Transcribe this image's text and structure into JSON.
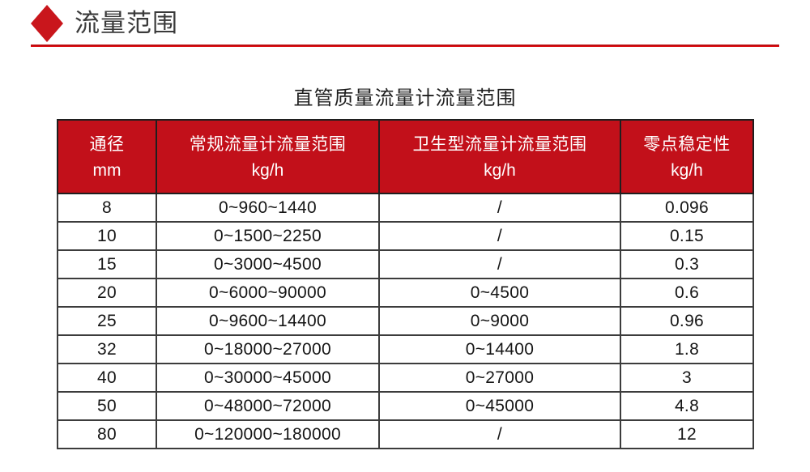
{
  "section_header": {
    "title": "流量范围",
    "icon": "diamond-icon",
    "accent_color": "#c9161c",
    "rule_color": "#d8101a"
  },
  "table": {
    "title": "直管质量流量计流量范围",
    "header_bg": "#c2101a",
    "header_text_color": "#ffffff",
    "border_color": "#3c3c3c",
    "columns": [
      {
        "line1": "通径",
        "line2": "mm"
      },
      {
        "line1": "常规流量计流量范围",
        "line2": "kg/h"
      },
      {
        "line1": "卫生型流量计流量范围",
        "line2": "kg/h"
      },
      {
        "line1": "零点稳定性",
        "line2": "kg/h"
      }
    ],
    "rows": [
      [
        "8",
        "0~960~1440",
        "/",
        "0.096"
      ],
      [
        "10",
        "0~1500~2250",
        "/",
        "0.15"
      ],
      [
        "15",
        "0~3000~4500",
        "/",
        "0.3"
      ],
      [
        "20",
        "0~6000~90000",
        "0~4500",
        "0.6"
      ],
      [
        "25",
        "0~9600~14400",
        "0~9000",
        "0.96"
      ],
      [
        "32",
        "0~18000~27000",
        "0~14400",
        "1.8"
      ],
      [
        "40",
        "0~30000~45000",
        "0~27000",
        "3"
      ],
      [
        "50",
        "0~48000~72000",
        "0~45000",
        "4.8"
      ],
      [
        "80",
        "0~120000~180000",
        "/",
        "12"
      ]
    ]
  }
}
